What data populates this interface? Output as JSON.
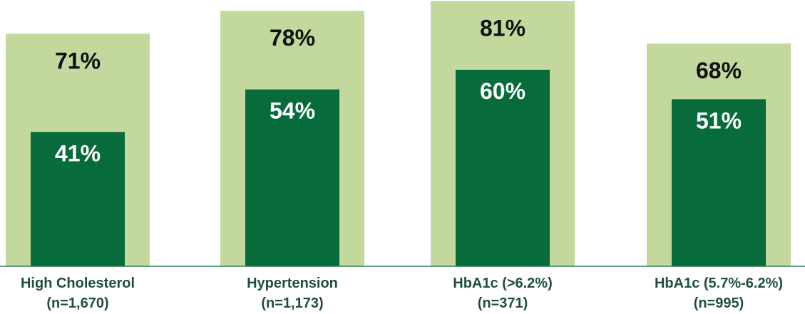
{
  "chart_data": {
    "type": "bar",
    "categories": [
      {
        "line1": "High Cholesterol",
        "line2": "(n=1,670)"
      },
      {
        "line1": "Hypertension",
        "line2": "(n=1,173)"
      },
      {
        "line1": "HbA1c (>6.2%)",
        "line2": "(n=371)"
      },
      {
        "line1": "HbA1c (5.7%-6.2%)",
        "line2": "(n=995)"
      }
    ],
    "series": [
      {
        "values": [
          71,
          78,
          81,
          68
        ],
        "labels": [
          "71%",
          "78%",
          "81%",
          "68%"
        ],
        "color": "#c2d89c",
        "label_color": "#111111"
      },
      {
        "values": [
          41,
          54,
          60,
          51
        ],
        "labels": [
          "41%",
          "54%",
          "60%",
          "51%"
        ],
        "color": "#076b3c",
        "label_color": "#ffffff"
      }
    ],
    "axis_color": "#2e7d5b",
    "ylim": [
      0,
      100
    ],
    "grid": false,
    "legend": "none"
  }
}
